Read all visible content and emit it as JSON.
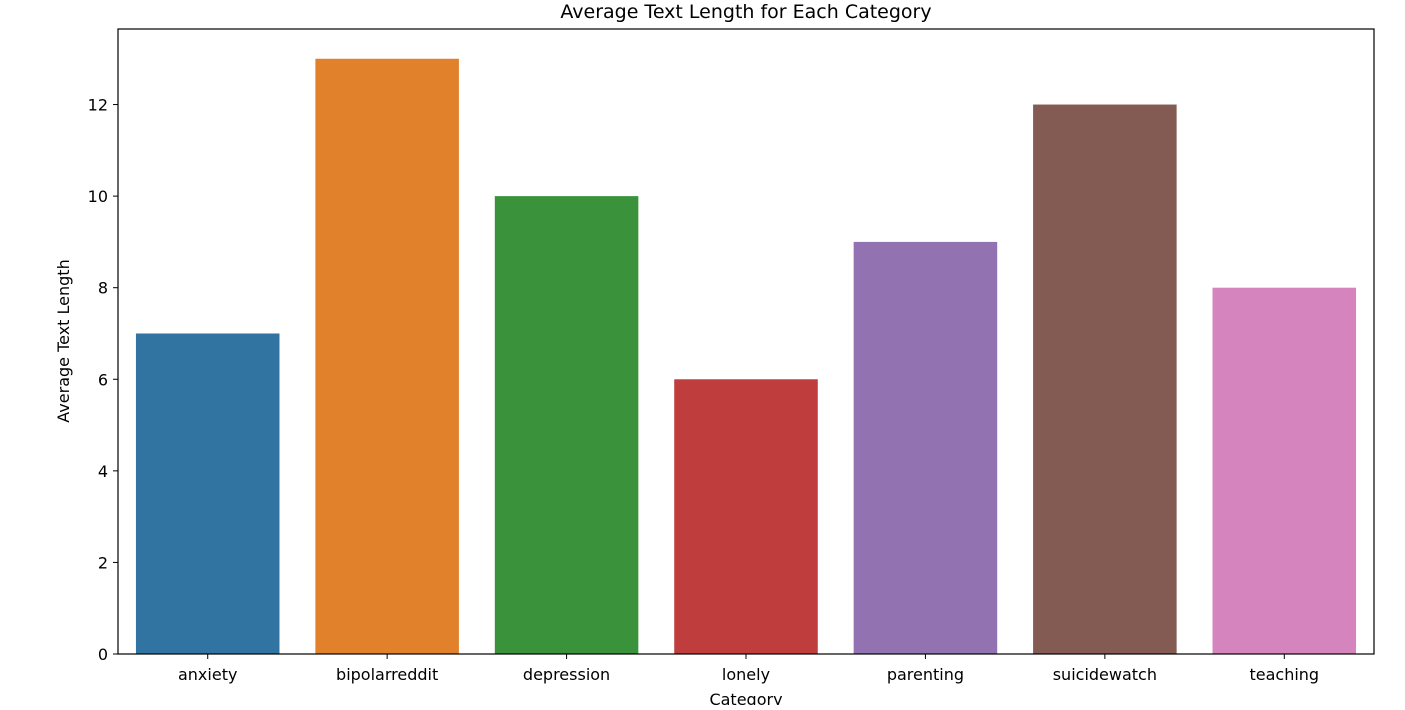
{
  "chart_data": {
    "type": "bar",
    "title": "Average Text Length for Each Category",
    "xlabel": "Category",
    "ylabel": "Average Text Length",
    "categories": [
      "anxiety",
      "bipolarreddit",
      "depression",
      "lonely",
      "parenting",
      "suicidewatch",
      "teaching"
    ],
    "values": [
      7,
      13,
      10,
      6,
      9,
      12,
      8
    ],
    "colors": [
      "#3274a1",
      "#e1812c",
      "#3a923a",
      "#c03d3e",
      "#9372b2",
      "#845b53",
      "#d684bd"
    ],
    "ylim": [
      0,
      13.65
    ],
    "yticks": [
      0,
      2,
      4,
      6,
      8,
      10,
      12
    ],
    "grid": false,
    "legend": "none"
  }
}
